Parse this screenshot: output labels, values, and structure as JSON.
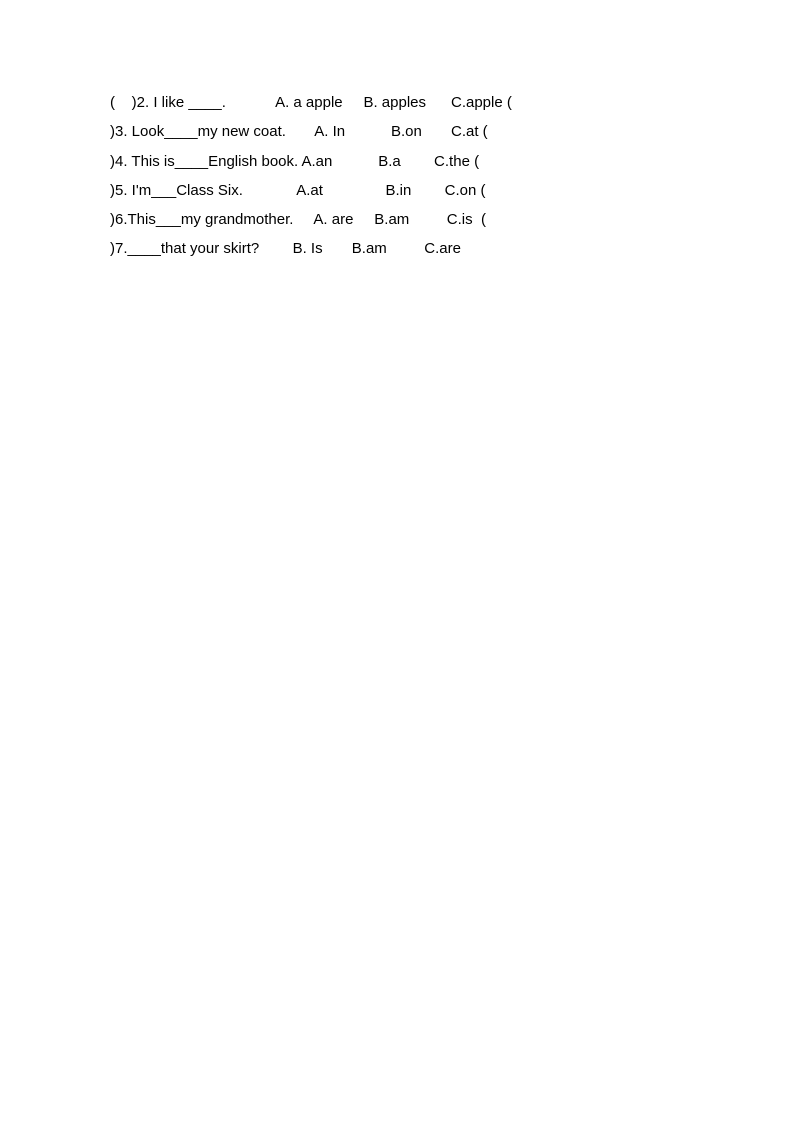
{
  "questions": {
    "line1": "(    )2. I like ____.            A. a apple     B. apples      C.apple (",
    "line2": ")3. Look____my new coat.       A. In           B.on       C.at (",
    "line3": ")4. This is____English book. A.an           B.a        C.the (",
    "line4": ")5. I'm___Class Six.             A.at               B.in        C.on (",
    "line5": ")6.This___my grandmother.     A. are     B.am         C.is  (",
    "line6": ")7.____that your skirt?        B. Is       B.am         C.are"
  },
  "styling": {
    "background_color": "#ffffff",
    "text_color": "#000000",
    "font_size": 15,
    "line_height": 1.95
  }
}
